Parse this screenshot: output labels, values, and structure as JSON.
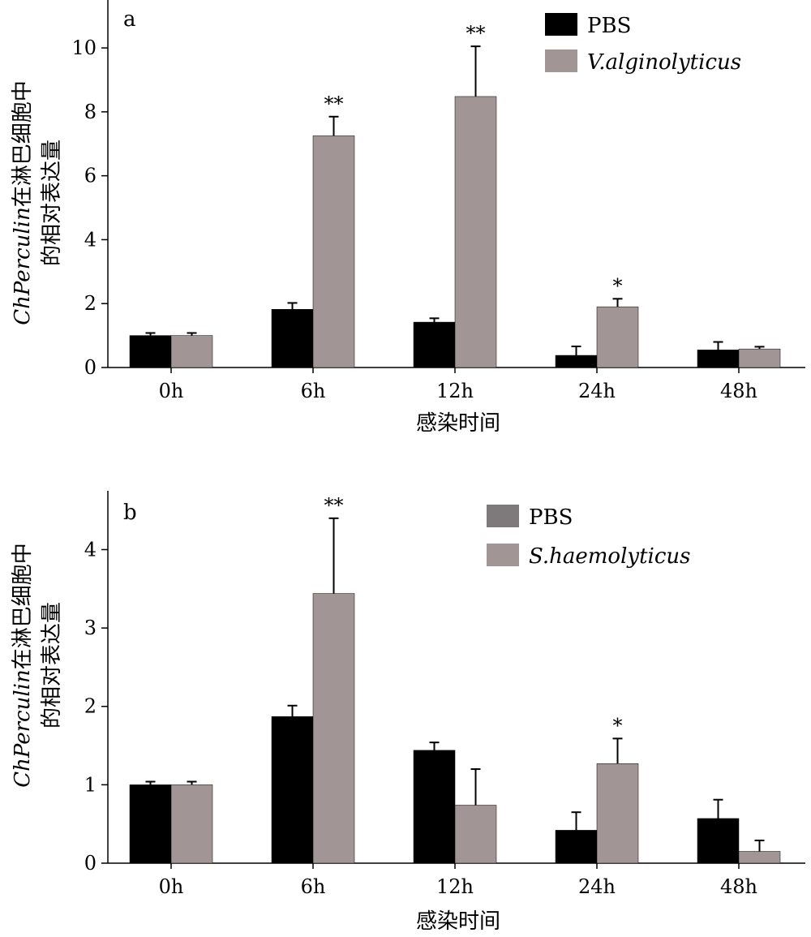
{
  "chart_data": [
    {
      "type": "bar",
      "panel_label": "a",
      "categories": [
        "0h",
        "6h",
        "12h",
        "24h",
        "48h"
      ],
      "series": [
        {
          "name": "PBS",
          "values": [
            1.0,
            1.82,
            1.42,
            0.38,
            0.55
          ],
          "errors": [
            0.08,
            0.2,
            0.12,
            0.28,
            0.25
          ],
          "color": "#000000"
        },
        {
          "name": "V.alginolyticus",
          "values": [
            1.0,
            7.25,
            8.48,
            1.9,
            0.58
          ],
          "errors": [
            0.08,
            0.6,
            1.57,
            0.25,
            0.07
          ],
          "color": "#a29596"
        }
      ],
      "significance": [
        [
          "",
          ""
        ],
        [
          "",
          "**"
        ],
        [
          "",
          "**"
        ],
        [
          "",
          "*"
        ],
        [
          "",
          ""
        ]
      ],
      "yticks": [
        0,
        2,
        4,
        6,
        8,
        10
      ],
      "ylim": [
        0,
        11.5
      ],
      "xlabel": "感染时间",
      "ylabel_italic": "ChPerculin",
      "ylabel_rest": "在淋巴细胞中",
      "ylabel_line2": "的相对表达量",
      "legend_position": "top-right"
    },
    {
      "type": "bar",
      "panel_label": "b",
      "categories": [
        "0h",
        "6h",
        "12h",
        "24h",
        "48h"
      ],
      "series": [
        {
          "name": "PBS",
          "values": [
            1.0,
            1.87,
            1.44,
            0.42,
            0.57
          ],
          "errors": [
            0.04,
            0.14,
            0.1,
            0.23,
            0.24
          ],
          "color": "#000000",
          "legend_color": "#7e797a"
        },
        {
          "name": "S.haemolyticus",
          "values": [
            1.0,
            3.44,
            0.74,
            1.27,
            0.15
          ],
          "errors": [
            0.04,
            0.96,
            0.46,
            0.32,
            0.14
          ],
          "color": "#a29596"
        }
      ],
      "significance": [
        [
          "",
          ""
        ],
        [
          "",
          "**"
        ],
        [
          "",
          ""
        ],
        [
          "",
          "*"
        ],
        [
          "",
          ""
        ]
      ],
      "yticks": [
        0,
        1,
        2,
        3,
        4
      ],
      "ylim": [
        0,
        4.75
      ],
      "xlabel": "感染时间",
      "ylabel_italic": "ChPerculin",
      "ylabel_rest": "在淋巴细胞中",
      "ylabel_line2": "的相对表达量",
      "legend_position": "top-right"
    }
  ]
}
